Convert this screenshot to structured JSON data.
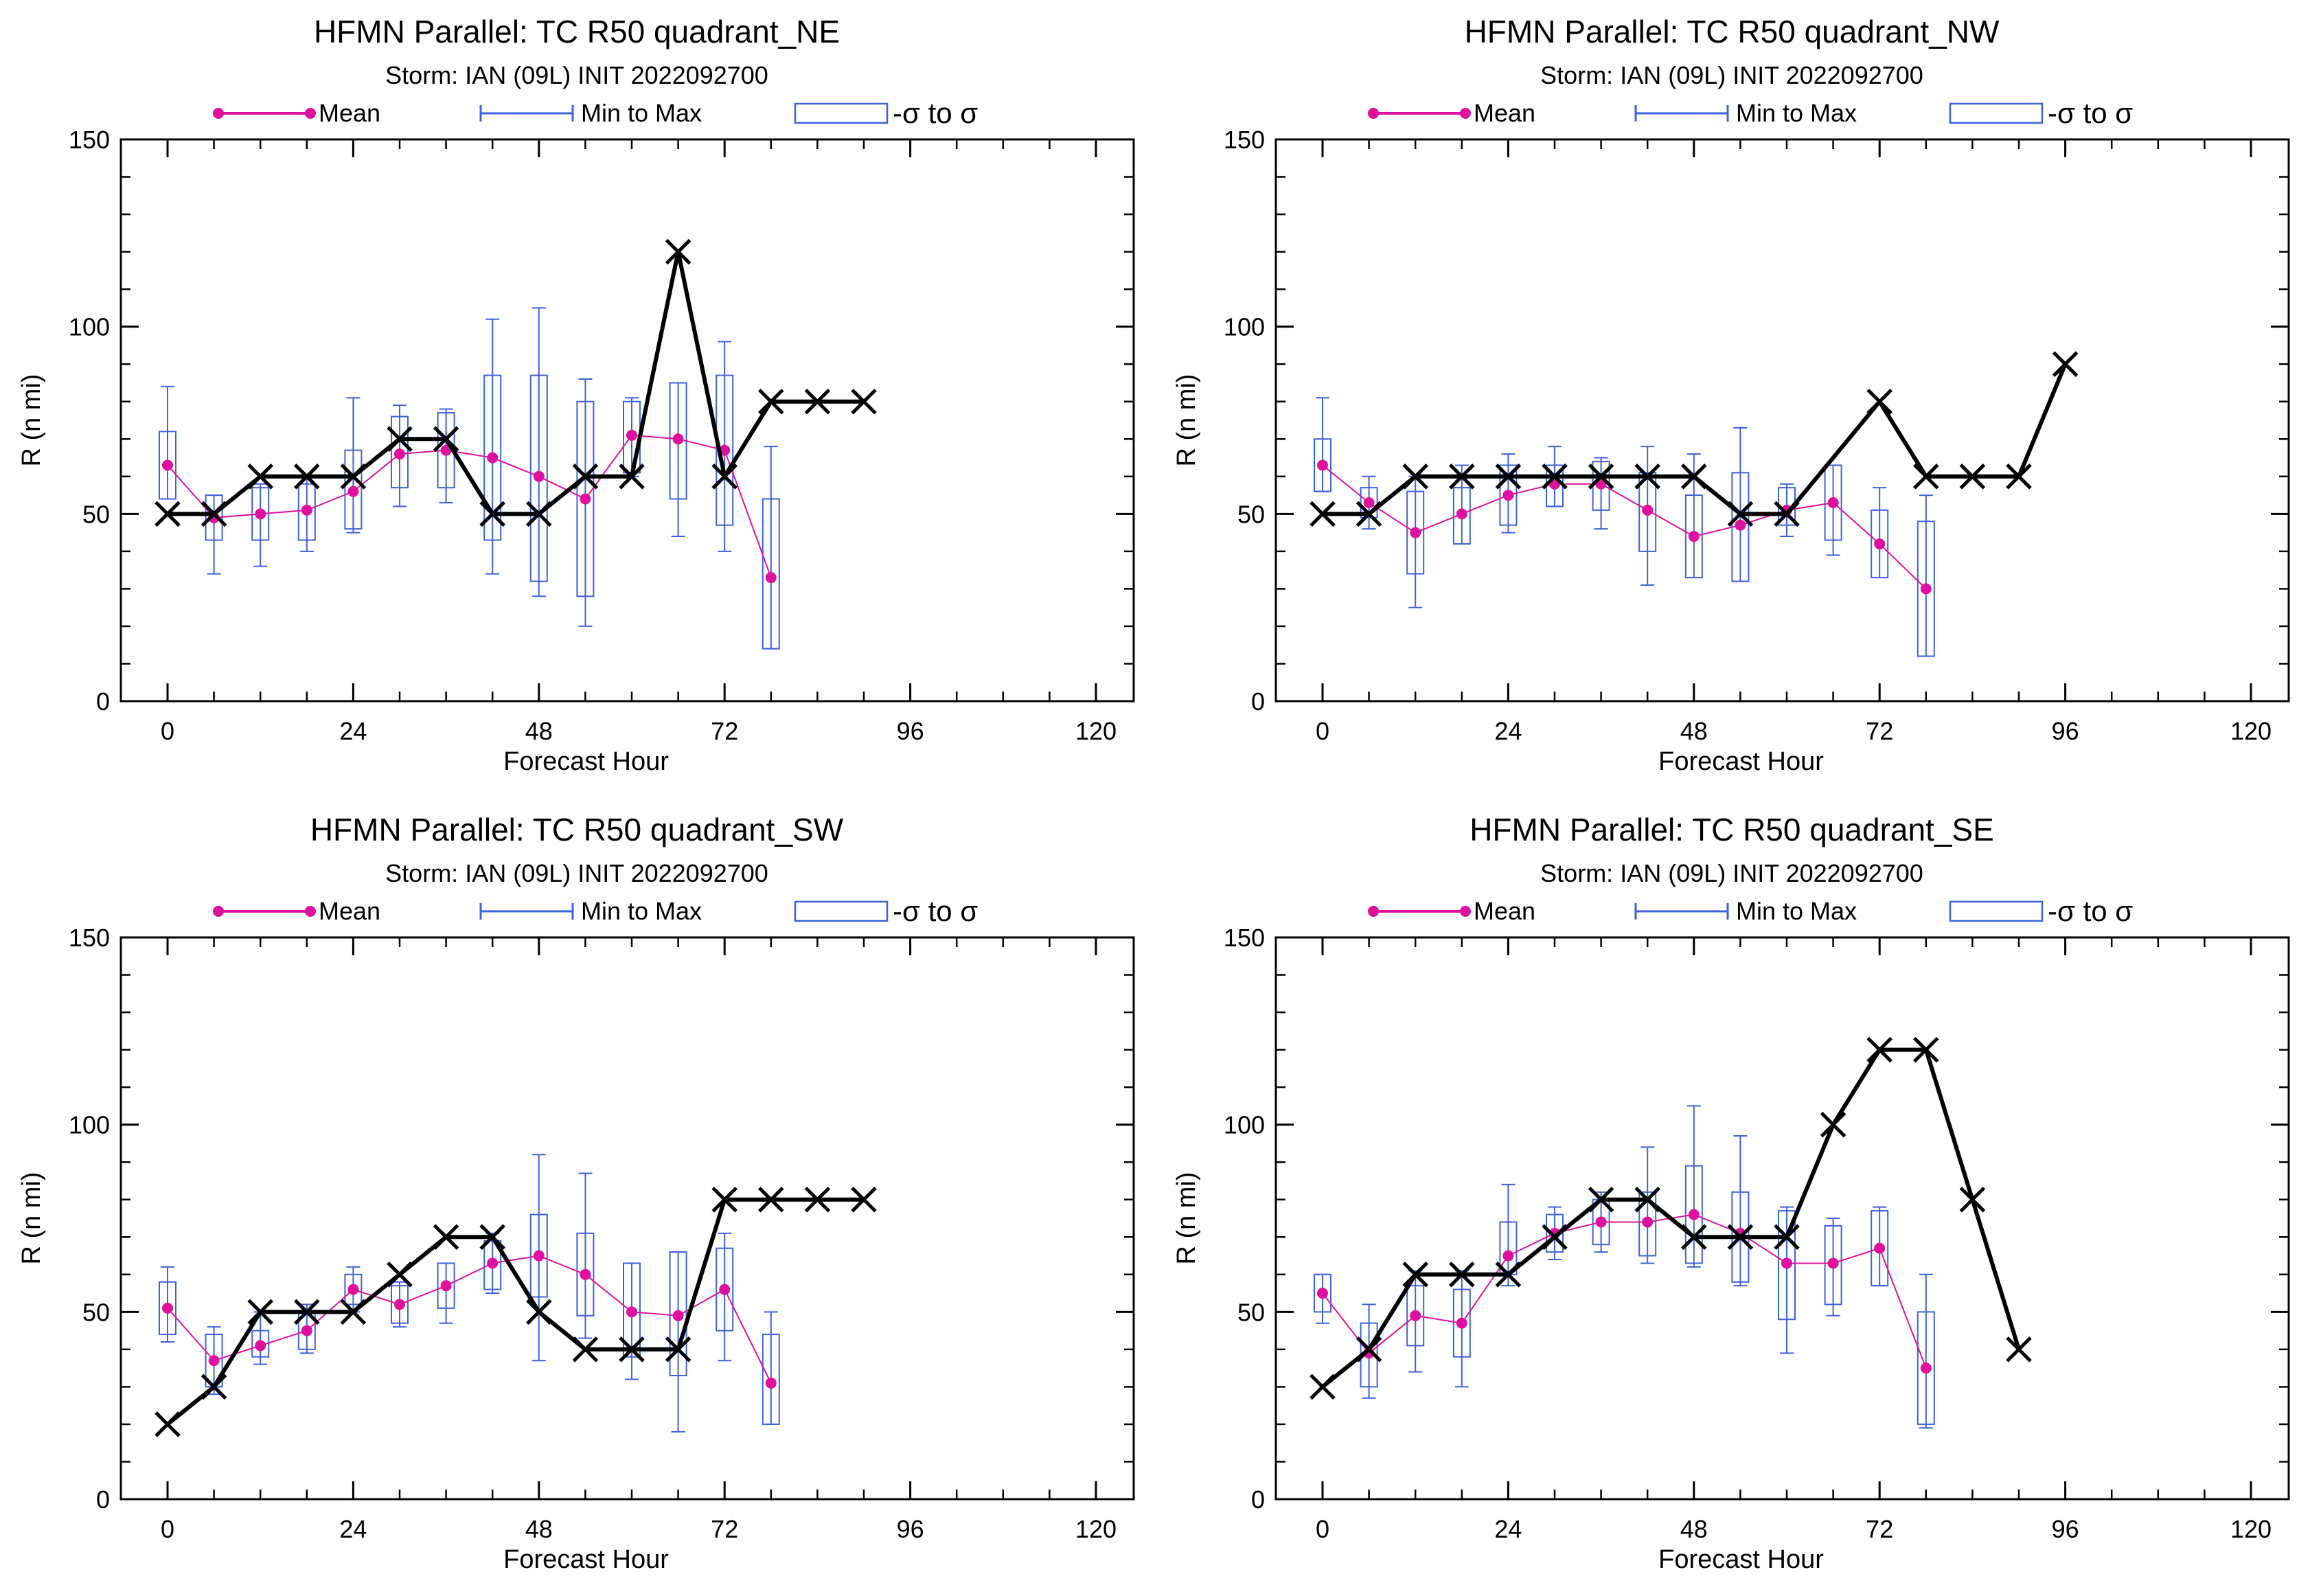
{
  "legend": {
    "mean_label": "Mean",
    "minmax_label": "Min to Max",
    "sigma_label": "-σ to σ"
  },
  "colors": {
    "mean": "#e0109e",
    "box": "#3f62e0",
    "best_track": "#000000",
    "axes": "#000000"
  },
  "chart_data": [
    {
      "type": "box",
      "title": "HFMN Parallel: TC  R50 quadrant_NE",
      "subtitle": "Storm: IAN (09L) INIT 2022092700",
      "xlabel": "Forecast Hour",
      "ylabel": "R (n mi)",
      "xlim": [
        -6,
        126
      ],
      "ylim": [
        0,
        150
      ],
      "xticks": [
        0,
        24,
        48,
        72,
        96,
        120
      ],
      "yticks": [
        0,
        50,
        100,
        150
      ],
      "grid": false,
      "legend_position": "top",
      "stats": [
        {
          "hour": 0,
          "min": 54,
          "max": 84,
          "sd_low": 54,
          "sd_high": 72,
          "mean": 63
        },
        {
          "hour": 6,
          "min": 34,
          "max": 55,
          "sd_low": 43,
          "sd_high": 55,
          "mean": 49
        },
        {
          "hour": 12,
          "min": 36,
          "max": 58,
          "sd_low": 43,
          "sd_high": 57,
          "mean": 50
        },
        {
          "hour": 18,
          "min": 40,
          "max": 60,
          "sd_low": 43,
          "sd_high": 58,
          "mean": 51
        },
        {
          "hour": 24,
          "min": 45,
          "max": 81,
          "sd_low": 46,
          "sd_high": 67,
          "mean": 56
        },
        {
          "hour": 30,
          "min": 52,
          "max": 79,
          "sd_low": 57,
          "sd_high": 76,
          "mean": 66
        },
        {
          "hour": 36,
          "min": 53,
          "max": 78,
          "sd_low": 57,
          "sd_high": 77,
          "mean": 67
        },
        {
          "hour": 42,
          "min": 34,
          "max": 102,
          "sd_low": 43,
          "sd_high": 87,
          "mean": 65
        },
        {
          "hour": 48,
          "min": 28,
          "max": 105,
          "sd_low": 32,
          "sd_high": 87,
          "mean": 60
        },
        {
          "hour": 54,
          "min": 20,
          "max": 86,
          "sd_low": 28,
          "sd_high": 80,
          "mean": 54
        },
        {
          "hour": 60,
          "min": 60,
          "max": 81,
          "sd_low": 61,
          "sd_high": 80,
          "mean": 71
        },
        {
          "hour": 66,
          "min": 44,
          "max": 85,
          "sd_low": 54,
          "sd_high": 85,
          "mean": 70
        },
        {
          "hour": 72,
          "min": 40,
          "max": 96,
          "sd_low": 47,
          "sd_high": 87,
          "mean": 67
        },
        {
          "hour": 78,
          "min": 14,
          "max": 68,
          "sd_low": 14,
          "sd_high": 54,
          "mean": 33
        }
      ],
      "best_track": [
        {
          "hour": 0,
          "value": 50
        },
        {
          "hour": 6,
          "value": 50
        },
        {
          "hour": 12,
          "value": 60
        },
        {
          "hour": 18,
          "value": 60
        },
        {
          "hour": 24,
          "value": 60
        },
        {
          "hour": 30,
          "value": 70
        },
        {
          "hour": 36,
          "value": 70
        },
        {
          "hour": 42,
          "value": 50
        },
        {
          "hour": 48,
          "value": 50
        },
        {
          "hour": 54,
          "value": 60
        },
        {
          "hour": 60,
          "value": 60
        },
        {
          "hour": 66,
          "value": 120
        },
        {
          "hour": 72,
          "value": 60
        },
        {
          "hour": 78,
          "value": 80
        },
        {
          "hour": 84,
          "value": 80
        },
        {
          "hour": 90,
          "value": 80
        }
      ]
    },
    {
      "type": "box",
      "title": "HFMN Parallel: TC  R50 quadrant_NW",
      "subtitle": "Storm: IAN (09L) INIT 2022092700",
      "xlabel": "Forecast Hour",
      "ylabel": "R (n mi)",
      "xlim": [
        -6,
        126
      ],
      "ylim": [
        0,
        150
      ],
      "xticks": [
        0,
        24,
        48,
        72,
        96,
        120
      ],
      "yticks": [
        0,
        50,
        100,
        150
      ],
      "grid": false,
      "legend_position": "top",
      "stats": [
        {
          "hour": 0,
          "min": 56,
          "max": 81,
          "sd_low": 56,
          "sd_high": 70,
          "mean": 63
        },
        {
          "hour": 6,
          "min": 46,
          "max": 60,
          "sd_low": 49,
          "sd_high": 57,
          "mean": 53
        },
        {
          "hour": 12,
          "min": 25,
          "max": 60,
          "sd_low": 34,
          "sd_high": 56,
          "mean": 45
        },
        {
          "hour": 18,
          "min": 42,
          "max": 63,
          "sd_low": 42,
          "sd_high": 57,
          "mean": 50
        },
        {
          "hour": 24,
          "min": 45,
          "max": 66,
          "sd_low": 47,
          "sd_high": 63,
          "mean": 55
        },
        {
          "hour": 30,
          "min": 52,
          "max": 68,
          "sd_low": 52,
          "sd_high": 63,
          "mean": 58
        },
        {
          "hour": 36,
          "min": 46,
          "max": 65,
          "sd_low": 51,
          "sd_high": 64,
          "mean": 58
        },
        {
          "hour": 42,
          "min": 31,
          "max": 68,
          "sd_low": 40,
          "sd_high": 61,
          "mean": 51
        },
        {
          "hour": 48,
          "min": 33,
          "max": 66,
          "sd_low": 33,
          "sd_high": 55,
          "mean": 44
        },
        {
          "hour": 54,
          "min": 32,
          "max": 73,
          "sd_low": 32,
          "sd_high": 61,
          "mean": 47
        },
        {
          "hour": 60,
          "min": 44,
          "max": 58,
          "sd_low": 47,
          "sd_high": 57,
          "mean": 51
        },
        {
          "hour": 66,
          "min": 39,
          "max": 63,
          "sd_low": 43,
          "sd_high": 63,
          "mean": 53
        },
        {
          "hour": 72,
          "min": 33,
          "max": 57,
          "sd_low": 33,
          "sd_high": 51,
          "mean": 42
        },
        {
          "hour": 78,
          "min": 12,
          "max": 55,
          "sd_low": 12,
          "sd_high": 48,
          "mean": 30
        }
      ],
      "best_track": [
        {
          "hour": 0,
          "value": 50
        },
        {
          "hour": 6,
          "value": 50
        },
        {
          "hour": 12,
          "value": 60
        },
        {
          "hour": 18,
          "value": 60
        },
        {
          "hour": 24,
          "value": 60
        },
        {
          "hour": 30,
          "value": 60
        },
        {
          "hour": 36,
          "value": 60
        },
        {
          "hour": 42,
          "value": 60
        },
        {
          "hour": 48,
          "value": 60
        },
        {
          "hour": 54,
          "value": 50
        },
        {
          "hour": 60,
          "value": 50
        },
        {
          "hour": 72,
          "value": 80
        },
        {
          "hour": 78,
          "value": 60
        },
        {
          "hour": 84,
          "value": 60
        },
        {
          "hour": 90,
          "value": 60
        },
        {
          "hour": 96,
          "value": 90
        }
      ]
    },
    {
      "type": "box",
      "title": "HFMN Parallel: TC  R50 quadrant_SW",
      "subtitle": "Storm: IAN (09L) INIT 2022092700",
      "xlabel": "Forecast Hour",
      "ylabel": "R (n mi)",
      "xlim": [
        -6,
        126
      ],
      "ylim": [
        0,
        150
      ],
      "xticks": [
        0,
        24,
        48,
        72,
        96,
        120
      ],
      "yticks": [
        0,
        50,
        100,
        150
      ],
      "grid": false,
      "legend_position": "top",
      "stats": [
        {
          "hour": 0,
          "min": 42,
          "max": 62,
          "sd_low": 44,
          "sd_high": 58,
          "mean": 51
        },
        {
          "hour": 6,
          "min": 28,
          "max": 46,
          "sd_low": 30,
          "sd_high": 44,
          "mean": 37
        },
        {
          "hour": 12,
          "min": 36,
          "max": 50,
          "sd_low": 38,
          "sd_high": 45,
          "mean": 41
        },
        {
          "hour": 18,
          "min": 39,
          "max": 52,
          "sd_low": 40,
          "sd_high": 50,
          "mean": 45
        },
        {
          "hour": 24,
          "min": 50,
          "max": 62,
          "sd_low": 52,
          "sd_high": 60,
          "mean": 56
        },
        {
          "hour": 30,
          "min": 46,
          "max": 58,
          "sd_low": 47,
          "sd_high": 57,
          "mean": 52
        },
        {
          "hour": 36,
          "min": 47,
          "max": 63,
          "sd_low": 51,
          "sd_high": 63,
          "mean": 57
        },
        {
          "hour": 42,
          "min": 55,
          "max": 71,
          "sd_low": 56,
          "sd_high": 69,
          "mean": 63
        },
        {
          "hour": 48,
          "min": 37,
          "max": 92,
          "sd_low": 54,
          "sd_high": 76,
          "mean": 65
        },
        {
          "hour": 54,
          "min": 43,
          "max": 87,
          "sd_low": 49,
          "sd_high": 71,
          "mean": 60
        },
        {
          "hour": 60,
          "min": 32,
          "max": 63,
          "sd_low": 38,
          "sd_high": 63,
          "mean": 50
        },
        {
          "hour": 66,
          "min": 18,
          "max": 66,
          "sd_low": 33,
          "sd_high": 66,
          "mean": 49
        },
        {
          "hour": 72,
          "min": 37,
          "max": 71,
          "sd_low": 45,
          "sd_high": 67,
          "mean": 56
        },
        {
          "hour": 78,
          "min": 20,
          "max": 50,
          "sd_low": 20,
          "sd_high": 44,
          "mean": 31
        }
      ],
      "best_track": [
        {
          "hour": 0,
          "value": 20
        },
        {
          "hour": 6,
          "value": 30
        },
        {
          "hour": 12,
          "value": 50
        },
        {
          "hour": 18,
          "value": 50
        },
        {
          "hour": 24,
          "value": 50
        },
        {
          "hour": 30,
          "value": 60
        },
        {
          "hour": 36,
          "value": 70
        },
        {
          "hour": 42,
          "value": 70
        },
        {
          "hour": 48,
          "value": 50
        },
        {
          "hour": 54,
          "value": 40
        },
        {
          "hour": 60,
          "value": 40
        },
        {
          "hour": 66,
          "value": 40
        },
        {
          "hour": 72,
          "value": 80
        },
        {
          "hour": 78,
          "value": 80
        },
        {
          "hour": 84,
          "value": 80
        },
        {
          "hour": 90,
          "value": 80
        }
      ]
    },
    {
      "type": "box",
      "title": "HFMN Parallel: TC  R50 quadrant_SE",
      "subtitle": "Storm: IAN (09L) INIT 2022092700",
      "xlabel": "Forecast Hour",
      "ylabel": "R (n mi)",
      "xlim": [
        -6,
        126
      ],
      "ylim": [
        0,
        150
      ],
      "xticks": [
        0,
        24,
        48,
        72,
        96,
        120
      ],
      "yticks": [
        0,
        50,
        100,
        150
      ],
      "grid": false,
      "legend_position": "top",
      "stats": [
        {
          "hour": 0,
          "min": 47,
          "max": 60,
          "sd_low": 50,
          "sd_high": 60,
          "mean": 55
        },
        {
          "hour": 6,
          "min": 27,
          "max": 52,
          "sd_low": 30,
          "sd_high": 47,
          "mean": 39
        },
        {
          "hour": 12,
          "min": 34,
          "max": 61,
          "sd_low": 41,
          "sd_high": 57,
          "mean": 49
        },
        {
          "hour": 18,
          "min": 30,
          "max": 61,
          "sd_low": 38,
          "sd_high": 56,
          "mean": 47
        },
        {
          "hour": 24,
          "min": 57,
          "max": 84,
          "sd_low": 60,
          "sd_high": 74,
          "mean": 65
        },
        {
          "hour": 30,
          "min": 64,
          "max": 78,
          "sd_low": 66,
          "sd_high": 76,
          "mean": 71
        },
        {
          "hour": 36,
          "min": 66,
          "max": 82,
          "sd_low": 68,
          "sd_high": 80,
          "mean": 74
        },
        {
          "hour": 42,
          "min": 63,
          "max": 94,
          "sd_low": 65,
          "sd_high": 82,
          "mean": 74
        },
        {
          "hour": 48,
          "min": 62,
          "max": 105,
          "sd_low": 63,
          "sd_high": 89,
          "mean": 76
        },
        {
          "hour": 54,
          "min": 57,
          "max": 97,
          "sd_low": 58,
          "sd_high": 82,
          "mean": 71
        },
        {
          "hour": 60,
          "min": 39,
          "max": 78,
          "sd_low": 48,
          "sd_high": 77,
          "mean": 63
        },
        {
          "hour": 66,
          "min": 49,
          "max": 75,
          "sd_low": 52,
          "sd_high": 73,
          "mean": 63
        },
        {
          "hour": 72,
          "min": 57,
          "max": 78,
          "sd_low": 57,
          "sd_high": 77,
          "mean": 67
        },
        {
          "hour": 78,
          "min": 19,
          "max": 60,
          "sd_low": 20,
          "sd_high": 50,
          "mean": 35
        }
      ],
      "best_track": [
        {
          "hour": 0,
          "value": 30
        },
        {
          "hour": 6,
          "value": 40
        },
        {
          "hour": 12,
          "value": 60
        },
        {
          "hour": 18,
          "value": 60
        },
        {
          "hour": 24,
          "value": 60
        },
        {
          "hour": 30,
          "value": 70
        },
        {
          "hour": 36,
          "value": 80
        },
        {
          "hour": 42,
          "value": 80
        },
        {
          "hour": 48,
          "value": 70
        },
        {
          "hour": 54,
          "value": 70
        },
        {
          "hour": 60,
          "value": 70
        },
        {
          "hour": 66,
          "value": 100
        },
        {
          "hour": 72,
          "value": 120
        },
        {
          "hour": 78,
          "value": 120
        },
        {
          "hour": 84,
          "value": 80
        },
        {
          "hour": 90,
          "value": 40
        }
      ]
    }
  ]
}
